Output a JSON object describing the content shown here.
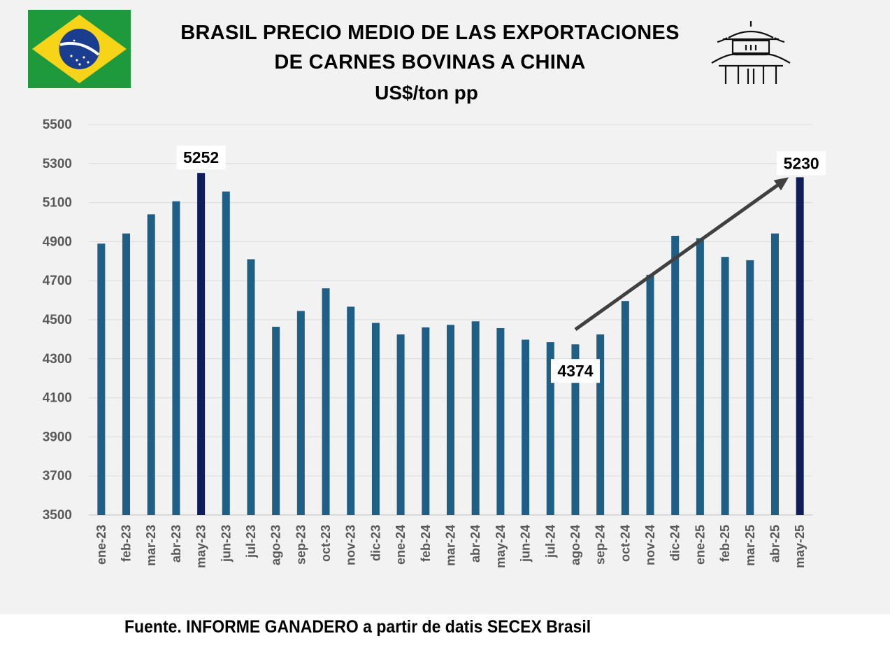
{
  "title": {
    "line1": "BRASIL PRECIO MEDIO DE LAS EXPORTACIONES",
    "line2": "DE CARNES BOVINAS A CHINA",
    "subtitle": "US$/ton pp"
  },
  "source": "Fuente. INFORME GANADERO a partir de datis SECEX Brasil",
  "icons": [
    "brazil-flag-icon",
    "pagoda-icon"
  ],
  "colors": {
    "bar": "#1f5f85",
    "highlight_bar": "#0d1e5a",
    "arrow": "#404040",
    "grid": "#d9d9d9",
    "background": "#f2f2f2"
  },
  "chart_data": {
    "type": "bar",
    "categories": [
      "ene-23",
      "feb-23",
      "mar-23",
      "abr-23",
      "may-23",
      "jun-23",
      "jul-23",
      "ago-23",
      "sep-23",
      "oct-23",
      "nov-23",
      "dic-23",
      "ene-24",
      "feb-24",
      "mar-24",
      "abr-24",
      "may-24",
      "jun-24",
      "jul-24",
      "ago-24",
      "sep-24",
      "oct-24",
      "nov-24",
      "dic-24",
      "ene-25",
      "feb-25",
      "mar-25",
      "abr-25",
      "may-25"
    ],
    "values": [
      4890,
      4942,
      5040,
      5107,
      5252,
      5157,
      4810,
      4464,
      4545,
      4661,
      4567,
      4484,
      4425,
      4461,
      4474,
      4492,
      4457,
      4398,
      4385,
      4374,
      4425,
      4596,
      4730,
      4930,
      4918,
      4822,
      4805,
      4942,
      5230
    ],
    "highlighted": [
      "may-23",
      "may-25"
    ],
    "ylim": [
      3500,
      5500
    ],
    "yticks": [
      3500,
      3700,
      3900,
      4100,
      4300,
      4500,
      4700,
      4900,
      5100,
      5300,
      5500
    ],
    "grid": true,
    "data_labels": [
      {
        "category": "may-23",
        "text": "5252"
      },
      {
        "category": "ago-24",
        "text": "4374"
      },
      {
        "category": "may-25",
        "text": "5230"
      }
    ],
    "trend_arrow": {
      "from_category": "ago-24",
      "from_value": 4450,
      "to_category": "may-25",
      "to_value": 5230
    }
  }
}
